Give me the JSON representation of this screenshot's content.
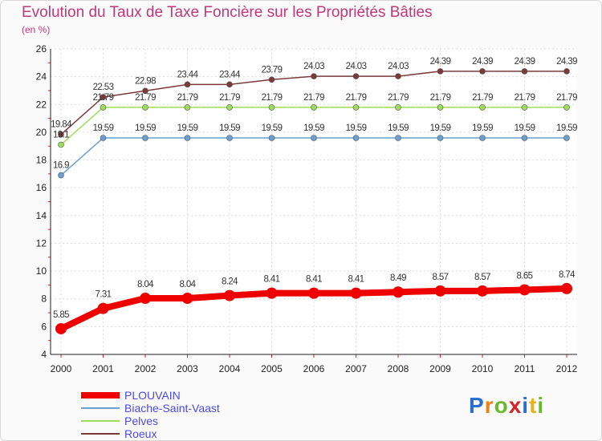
{
  "chart_data": {
    "type": "line",
    "title": "Evolution du Taux de Taxe Foncière sur les Propriétés Bâties",
    "unit_label": "(en %)",
    "categories": [
      "2000",
      "2001",
      "2002",
      "2003",
      "2004",
      "2005",
      "2006",
      "2007",
      "2008",
      "2009",
      "2010",
      "2011",
      "2012"
    ],
    "ylim": [
      4,
      26
    ],
    "yticks": [
      4,
      6,
      8,
      10,
      12,
      14,
      16,
      18,
      20,
      22,
      24,
      26
    ],
    "grid": true,
    "legend_position": "bottom-left",
    "series": [
      {
        "name": "PLOUVAIN",
        "color": "#ee0000",
        "values": [
          5.85,
          7.31,
          8.04,
          8.04,
          8.24,
          8.41,
          8.41,
          8.41,
          8.49,
          8.57,
          8.57,
          8.65,
          8.74
        ],
        "labels": [
          "5.85",
          "7.31",
          "8.04",
          "8.04",
          "8.24",
          "8.41",
          "8.41",
          "8.41",
          "8.49",
          "8.57",
          "8.57",
          "8.65",
          "8.74"
        ]
      },
      {
        "name": "Biache-Saint-Vaast",
        "color": "#6a9fcf",
        "values": [
          16.9,
          19.59,
          19.59,
          19.59,
          19.59,
          19.59,
          19.59,
          19.59,
          19.59,
          19.59,
          19.59,
          19.59,
          19.59
        ],
        "labels": [
          "16.9",
          "19.59",
          "19.59",
          "19.59",
          "19.59",
          "19.59",
          "19.59",
          "19.59",
          "19.59",
          "19.59",
          "19.59",
          "19.59",
          "19.59"
        ]
      },
      {
        "name": "Pelves",
        "color": "#9edc5a",
        "values": [
          19.1,
          21.79,
          21.79,
          21.79,
          21.79,
          21.79,
          21.79,
          21.79,
          21.79,
          21.79,
          21.79,
          21.79,
          21.79
        ],
        "labels": [
          "19.1",
          "21.79",
          "21.79",
          "21.79",
          "21.79",
          "21.79",
          "21.79",
          "21.79",
          "21.79",
          "21.79",
          "21.79",
          "21.79",
          "21.79"
        ]
      },
      {
        "name": "Roeux",
        "color": "#7a3a3a",
        "values": [
          19.84,
          22.53,
          22.98,
          23.44,
          23.44,
          23.79,
          24.03,
          24.03,
          24.03,
          24.39,
          24.39,
          24.39,
          24.39
        ],
        "labels": [
          "19.84",
          "22.53",
          "22.98",
          "23.44",
          "23.44",
          "23.79",
          "24.03",
          "24.03",
          "24.03",
          "24.39",
          "24.39",
          "24.39",
          "24.39"
        ]
      }
    ]
  },
  "logo": {
    "text": "Proxiti",
    "letters": [
      {
        "ch": "P",
        "color": "#2a6fd0"
      },
      {
        "ch": "r",
        "color": "#e8831c"
      },
      {
        "ch": "o",
        "color": "#6ab82e"
      },
      {
        "ch": "x",
        "color": "#d3242a"
      },
      {
        "ch": "i",
        "color": "#2a6fd0"
      },
      {
        "ch": "t",
        "color": "#e8b21c"
      },
      {
        "ch": "i",
        "color": "#6ab82e"
      }
    ]
  }
}
